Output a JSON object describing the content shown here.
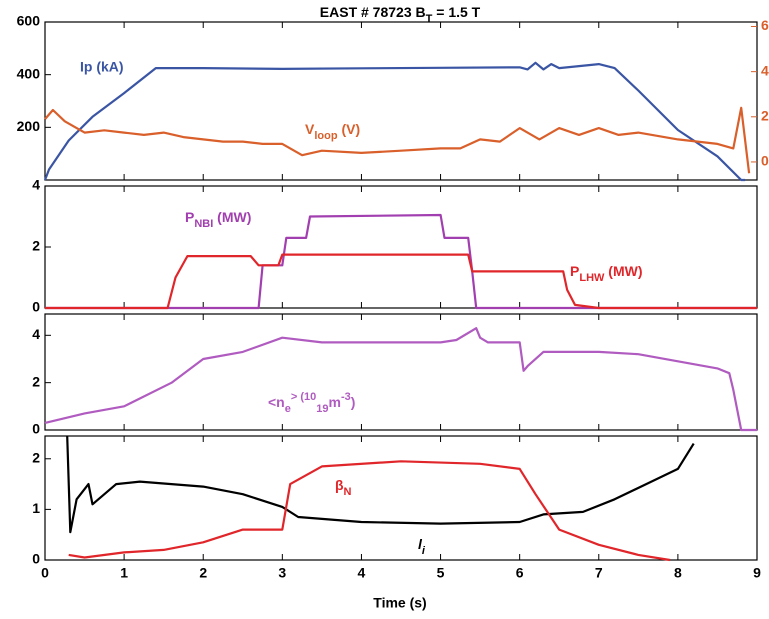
{
  "chart_data": [
    {
      "type": "line",
      "title": [
        "EAST # 78723  B",
        "T",
        " = 1.5 T"
      ],
      "xlim": [
        0,
        9
      ],
      "xticks": [
        0,
        1,
        2,
        3,
        4,
        5,
        6,
        7,
        8,
        9
      ],
      "ylim": [
        0,
        600
      ],
      "yticks": [
        200,
        400,
        600
      ],
      "y2lim": [
        -0.8,
        6.2
      ],
      "y2ticks": [
        0,
        2,
        4,
        6
      ],
      "series": [
        {
          "name": "Ip (kA)",
          "color": "#3a55a4",
          "x": [
            0,
            0.05,
            0.3,
            0.6,
            1.0,
            1.4,
            2,
            3,
            4,
            5,
            6,
            6.1,
            6.2,
            6.3,
            6.4,
            6.5,
            7,
            7.2,
            7.5,
            8,
            8.5,
            8.8,
            8.85
          ],
          "values": [
            0,
            40,
            150,
            240,
            330,
            425,
            425,
            422,
            424,
            426,
            428,
            420,
            445,
            420,
            440,
            425,
            440,
            425,
            340,
            190,
            90,
            0,
            0
          ]
        },
        {
          "name": [
            "V",
            "loop",
            " (V)"
          ],
          "color": "#d95f2b",
          "axis": "y2",
          "x": [
            0,
            0.1,
            0.25,
            0.5,
            0.75,
            1,
            1.25,
            1.5,
            1.75,
            2,
            2.25,
            2.5,
            2.75,
            3,
            3.25,
            3.5,
            4,
            4.5,
            5,
            5.25,
            5.5,
            5.75,
            6,
            6.25,
            6.5,
            6.75,
            7,
            7.25,
            7.5,
            8,
            8.5,
            8.7,
            8.8,
            8.9
          ],
          "values": [
            1.9,
            2.3,
            1.8,
            1.3,
            1.4,
            1.3,
            1.2,
            1.3,
            1.1,
            1.0,
            0.9,
            0.9,
            0.8,
            0.8,
            0.3,
            0.5,
            0.4,
            0.5,
            0.6,
            0.6,
            1.0,
            0.9,
            1.5,
            1.0,
            1.5,
            1.2,
            1.5,
            1.2,
            1.3,
            1.0,
            0.8,
            0.6,
            2.4,
            -0.5
          ]
        }
      ]
    },
    {
      "type": "line",
      "xlim": [
        0,
        9
      ],
      "xticks": [
        0,
        1,
        2,
        3,
        4,
        5,
        6,
        7,
        8,
        9
      ],
      "ylim": [
        0,
        4
      ],
      "yticks": [
        0,
        2,
        4
      ],
      "series": [
        {
          "name": [
            "P",
            "NBI",
            " (MW)"
          ],
          "color": "#a23fb0",
          "x": [
            0,
            2.7,
            2.75,
            2.8,
            3.0,
            3.05,
            3.3,
            3.35,
            5.0,
            5.05,
            5.35,
            5.4,
            5.45,
            9
          ],
          "values": [
            0,
            0,
            1.4,
            1.4,
            1.4,
            2.3,
            2.3,
            3.0,
            3.05,
            2.3,
            2.3,
            1.2,
            0,
            0
          ]
        },
        {
          "name": [
            "P",
            "LHW",
            " (MW)"
          ],
          "color": "#e0262a",
          "x": [
            0,
            1.55,
            1.65,
            1.8,
            2.6,
            2.7,
            2.95,
            3.0,
            5.35,
            5.4,
            6.55,
            6.6,
            6.7,
            7.0,
            9
          ],
          "values": [
            0,
            0,
            1.0,
            1.7,
            1.7,
            1.4,
            1.4,
            1.75,
            1.75,
            1.2,
            1.2,
            0.6,
            0.1,
            0,
            0
          ]
        }
      ]
    },
    {
      "type": "line",
      "xlim": [
        0,
        9
      ],
      "xticks": [
        0,
        1,
        2,
        3,
        4,
        5,
        6,
        7,
        8,
        9
      ],
      "ylim": [
        0,
        4.9
      ],
      "yticks": [
        0,
        2,
        4
      ],
      "series": [
        {
          "name": [
            "<n",
            "e",
            "> (10",
            "19",
            "m",
            "-3",
            ")"
          ],
          "color": "#b05bc0",
          "x": [
            0,
            0.5,
            1,
            1.6,
            2,
            2.5,
            3,
            3.5,
            4,
            5,
            5.2,
            5.45,
            5.5,
            5.6,
            6,
            6.05,
            6.1,
            6.3,
            7,
            7.5,
            8,
            8.5,
            8.65,
            8.7,
            8.8,
            9
          ],
          "values": [
            0.3,
            0.7,
            1.0,
            2.0,
            3.0,
            3.3,
            3.9,
            3.7,
            3.7,
            3.7,
            3.8,
            4.3,
            3.9,
            3.7,
            3.7,
            2.5,
            2.7,
            3.3,
            3.3,
            3.2,
            2.9,
            2.6,
            2.4,
            1.7,
            0,
            0
          ]
        }
      ]
    },
    {
      "type": "line",
      "xlabel": "Time (s)",
      "xlim": [
        0,
        9
      ],
      "xticks": [
        0,
        1,
        2,
        3,
        4,
        5,
        6,
        7,
        8,
        9
      ],
      "ylim": [
        0,
        2.45
      ],
      "yticks": [
        0,
        1,
        2
      ],
      "series": [
        {
          "name": [
            "l",
            "i"
          ],
          "color": "#000000",
          "x": [
            0.28,
            0.32,
            0.4,
            0.55,
            0.6,
            0.9,
            1.2,
            2,
            2.5,
            3,
            3.2,
            4,
            5,
            6,
            6.3,
            6.8,
            7.2,
            7.6,
            8,
            8.2
          ],
          "values": [
            2.45,
            0.55,
            1.2,
            1.5,
            1.1,
            1.5,
            1.55,
            1.45,
            1.3,
            1.05,
            0.85,
            0.75,
            0.72,
            0.75,
            0.9,
            0.95,
            1.2,
            1.5,
            1.8,
            2.3
          ]
        },
        {
          "name": [
            "β",
            "N"
          ],
          "color": "#e0262a",
          "x": [
            0.3,
            0.5,
            1,
            1.5,
            2,
            2.5,
            3,
            3.1,
            3.5,
            4.5,
            5.5,
            6,
            6.2,
            6.5,
            7,
            7.5,
            7.9
          ],
          "values": [
            0.1,
            0.05,
            0.15,
            0.2,
            0.35,
            0.6,
            0.6,
            1.5,
            1.85,
            1.95,
            1.9,
            1.8,
            1.3,
            0.6,
            0.3,
            0.1,
            0
          ]
        }
      ]
    }
  ]
}
